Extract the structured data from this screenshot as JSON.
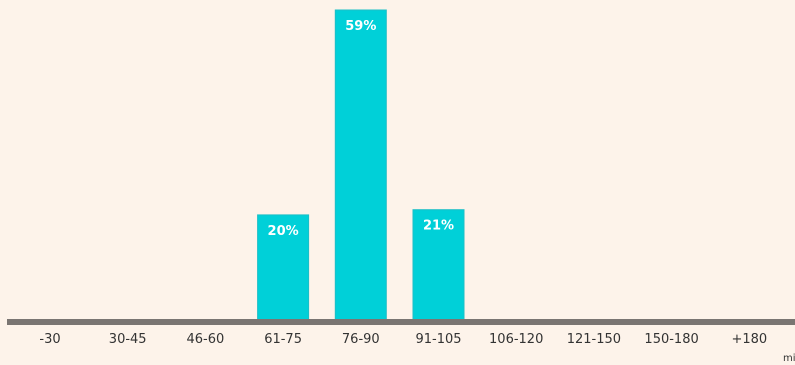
{
  "chart_data": {
    "type": "bar",
    "categories": [
      "-30",
      "30-45",
      "46-60",
      "61-75",
      "76-90",
      "91-105",
      "106-120",
      "121-150",
      "150-180",
      "+180"
    ],
    "values": [
      0,
      0,
      0,
      20,
      59,
      21,
      0,
      0,
      0,
      0
    ],
    "data_labels": [
      "",
      "",
      "",
      "20%",
      "59%",
      "21%",
      "",
      "",
      "",
      ""
    ],
    "x_unit_label": "mi",
    "ylim": [
      0,
      60
    ],
    "grid": false,
    "colors": {
      "bar": "#00d0d8",
      "bar_edge": "#1bbfc7",
      "baseline": "#7a7572",
      "background": "#fdf3ea"
    }
  }
}
